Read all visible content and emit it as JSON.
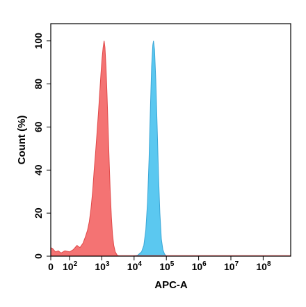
{
  "chart_data": {
    "type": "area",
    "title": "",
    "xlabel": "APC-A",
    "ylabel": "Count (%)",
    "xscale": "biexponential",
    "ylim": [
      0,
      108
    ],
    "grid": false,
    "legend": "none",
    "x_ticks": [
      {
        "value": 0,
        "base": "0",
        "exp": ""
      },
      {
        "value": 100,
        "base": "10",
        "exp": "2"
      },
      {
        "value": 1000,
        "base": "10",
        "exp": "3"
      },
      {
        "value": 10000,
        "base": "10",
        "exp": "4"
      },
      {
        "value": 100000,
        "base": "10",
        "exp": "5"
      },
      {
        "value": 1000000,
        "base": "10",
        "exp": "6"
      },
      {
        "value": 10000000,
        "base": "10",
        "exp": "7"
      },
      {
        "value": 100000000,
        "base": "10",
        "exp": "8"
      }
    ],
    "y_ticks": [
      0,
      20,
      40,
      60,
      80,
      100
    ],
    "series": [
      {
        "color": "#f47373",
        "stroke": "#e04848",
        "points": [
          [
            0,
            4
          ],
          [
            10,
            3.5
          ],
          [
            25,
            2
          ],
          [
            40,
            2.5
          ],
          [
            55,
            1.5
          ],
          [
            75,
            2.5
          ],
          [
            100,
            2
          ],
          [
            130,
            3
          ],
          [
            170,
            5
          ],
          [
            210,
            4
          ],
          [
            260,
            6
          ],
          [
            310,
            9
          ],
          [
            360,
            12
          ],
          [
            410,
            16
          ],
          [
            460,
            22
          ],
          [
            520,
            30
          ],
          [
            580,
            40
          ],
          [
            640,
            48
          ],
          [
            700,
            56
          ],
          [
            780,
            66
          ],
          [
            860,
            76
          ],
          [
            940,
            85
          ],
          [
            1020,
            92
          ],
          [
            1100,
            97
          ],
          [
            1180,
            100
          ],
          [
            1250,
            97
          ],
          [
            1350,
            88
          ],
          [
            1450,
            75
          ],
          [
            1560,
            60
          ],
          [
            1680,
            45
          ],
          [
            1820,
            30
          ],
          [
            1980,
            18
          ],
          [
            2150,
            10
          ],
          [
            2350,
            5
          ],
          [
            2600,
            2
          ],
          [
            3000,
            0.5
          ],
          [
            3500,
            0
          ]
        ]
      },
      {
        "color": "#5bc8f0",
        "stroke": "#3aa6d6",
        "points": [
          [
            9000,
            0
          ],
          [
            13000,
            0.5
          ],
          [
            17000,
            2
          ],
          [
            20000,
            5
          ],
          [
            23000,
            12
          ],
          [
            26000,
            25
          ],
          [
            29000,
            45
          ],
          [
            32000,
            68
          ],
          [
            35000,
            88
          ],
          [
            38000,
            98
          ],
          [
            40000,
            100
          ],
          [
            43000,
            96
          ],
          [
            47000,
            82
          ],
          [
            52000,
            60
          ],
          [
            57000,
            38
          ],
          [
            63000,
            20
          ],
          [
            70000,
            8
          ],
          [
            78000,
            3
          ],
          [
            88000,
            1
          ],
          [
            100000,
            0
          ]
        ]
      }
    ]
  }
}
